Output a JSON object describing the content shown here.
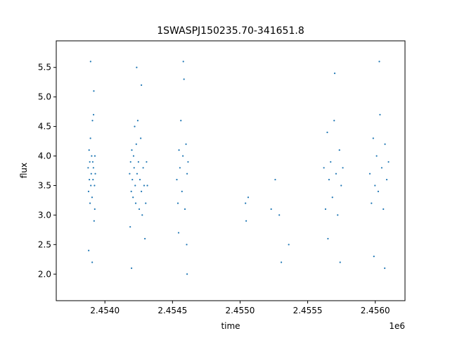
{
  "chart_data": {
    "type": "scatter",
    "title": "1SWASPJ150235.70-341651.8",
    "xlabel": "time",
    "ylabel": "flux",
    "x_offset_label": "1e6",
    "xlim": [
      2453640,
      2456220
    ],
    "ylim": [
      1.55,
      5.95
    ],
    "xticks": [
      2.454,
      2.4545,
      2.455,
      2.4555,
      2.456
    ],
    "xtick_labels": [
      "2.4540",
      "2.4545",
      "2.4550",
      "2.4555",
      "2.4560"
    ],
    "yticks": [
      2.0,
      2.5,
      3.0,
      3.5,
      4.0,
      4.5,
      5.0,
      5.5
    ],
    "ytick_labels": [
      "2.0",
      "2.5",
      "3.0",
      "3.5",
      "4.0",
      "4.5",
      "5.0",
      "5.5"
    ],
    "grid": false,
    "marker_color": "#1f77b4",
    "series": [
      {
        "x": [
          2453876,
          2453879,
          2453883,
          2453885,
          2453888,
          2453890,
          2453893,
          2453896,
          2453899,
          2453902,
          2453905,
          2453908,
          2453910,
          2453912,
          2453915,
          2453918,
          2453920,
          2453923,
          2453926,
          2453929,
          2453880,
          2453894,
          2453906,
          2453916,
          2453925,
          2454183,
          2454187,
          2454190,
          2454195,
          2454199,
          2454203,
          2454208,
          2454212,
          2454216,
          2454220,
          2454224,
          2454228,
          2454232,
          2454238,
          2454243,
          2454248,
          2454254,
          2454259,
          2454265,
          2454270,
          2454276,
          2454283,
          2454290,
          2454296,
          2454302,
          2454308,
          2454314,
          2454197,
          2454235,
          2454270,
          2454532,
          2454540,
          2454548,
          2454555,
          2454562,
          2454570,
          2454577,
          2454585,
          2454592,
          2454600,
          2454608,
          2454615,
          2454545,
          2454580,
          2454605,
          2454608,
          2455040,
          2455045,
          2455060,
          2455230,
          2455260,
          2455290,
          2455305,
          2455360,
          2455620,
          2455632,
          2455645,
          2455658,
          2455670,
          2455683,
          2455696,
          2455710,
          2455722,
          2455735,
          2455748,
          2455760,
          2455650,
          2455700,
          2455740,
          2455960,
          2455972,
          2455985,
          2455998,
          2456010,
          2456022,
          2456035,
          2456048,
          2456060,
          2456072,
          2456085,
          2456098,
          2455990,
          2456030,
          2456070
        ],
        "y": [
          3.8,
          3.4,
          4.1,
          3.6,
          3.9,
          3.2,
          4.3,
          3.5,
          3.7,
          4.0,
          3.3,
          4.6,
          3.9,
          3.6,
          3.8,
          5.1,
          2.9,
          3.5,
          4.0,
          3.7,
          2.4,
          5.6,
          2.2,
          4.7,
          3.1,
          3.7,
          2.8,
          3.9,
          3.4,
          4.1,
          3.6,
          3.3,
          4.0,
          3.8,
          4.5,
          3.5,
          3.2,
          4.2,
          3.7,
          4.6,
          3.9,
          3.1,
          3.6,
          4.3,
          3.4,
          3.0,
          3.8,
          3.5,
          2.6,
          3.2,
          3.9,
          3.5,
          2.1,
          5.5,
          5.2,
          3.6,
          3.2,
          4.1,
          3.8,
          4.6,
          3.4,
          4.0,
          5.3,
          3.1,
          4.2,
          3.7,
          3.9,
          2.7,
          5.6,
          2.5,
          2.0,
          3.2,
          2.9,
          3.3,
          3.1,
          3.6,
          3.0,
          2.2,
          2.5,
          3.8,
          3.1,
          4.4,
          3.6,
          3.9,
          3.3,
          4.6,
          3.7,
          3.0,
          4.1,
          3.5,
          3.8,
          2.6,
          5.4,
          2.2,
          3.7,
          3.2,
          4.3,
          3.5,
          4.0,
          3.4,
          4.7,
          3.8,
          3.1,
          4.2,
          3.6,
          3.9,
          2.3,
          5.6,
          2.1
        ]
      }
    ]
  }
}
